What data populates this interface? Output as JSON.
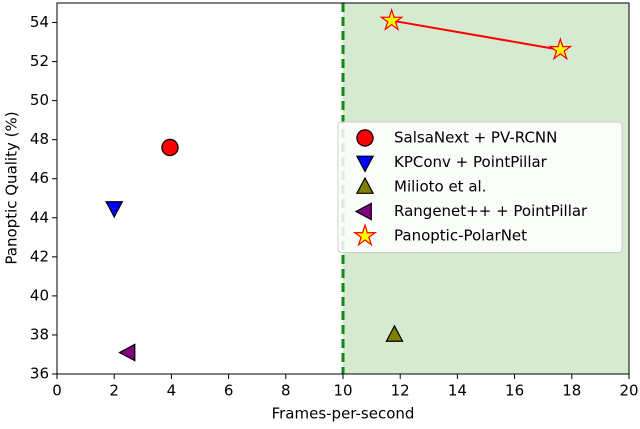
{
  "chart_data": {
    "type": "scatter",
    "xlabel": "Frames-per-second",
    "ylabel": "Panoptic Quality (%)",
    "xlim": [
      0,
      20
    ],
    "ylim": [
      36,
      55
    ],
    "xticks": [
      0,
      2,
      4,
      6,
      8,
      10,
      12,
      14,
      16,
      18,
      20
    ],
    "yticks": [
      36,
      38,
      40,
      42,
      44,
      46,
      48,
      50,
      52,
      54
    ],
    "vline": 10,
    "vline_color": "#118811",
    "shade_xrange": [
      10,
      20
    ],
    "shade_color": "#d6ead2",
    "legend": "right",
    "series": [
      {
        "name": "SalsaNext + PV-RCNN",
        "marker": "circle",
        "color": "#ff0000",
        "x": [
          3.95
        ],
        "y": [
          47.6
        ]
      },
      {
        "name": "KPConv + PointPillar",
        "marker": "triangle-down",
        "color": "#0000ff",
        "x": [
          2.0
        ],
        "y": [
          44.5
        ]
      },
      {
        "name": "Milioto et al.",
        "marker": "triangle-up",
        "color": "#808000",
        "x": [
          11.8
        ],
        "y": [
          38.0
        ]
      },
      {
        "name": "Rangenet++ + PointPillar",
        "marker": "triangle-left",
        "color": "#800080",
        "x": [
          2.5
        ],
        "y": [
          37.1
        ]
      },
      {
        "name": "Panoptic-PolarNet",
        "marker": "star",
        "color": "#ffff00",
        "edgecolor": "#ff0000",
        "line": true,
        "x": [
          11.7,
          17.6
        ],
        "y": [
          54.1,
          52.6
        ]
      }
    ]
  }
}
